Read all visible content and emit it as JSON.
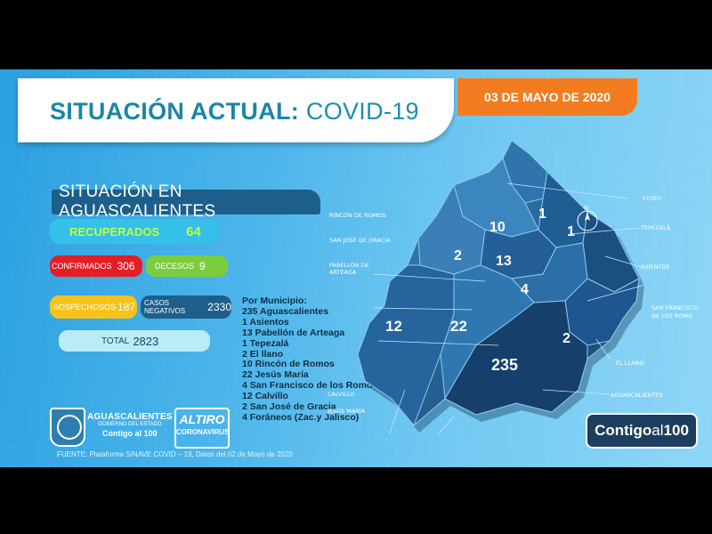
{
  "header": {
    "title_bold": "SITUACIÓN ACTUAL:",
    "title_rest": "COVID-19",
    "date": "03 DE MAYO DE 2020"
  },
  "section_title": "SITUACIÓN EN AGUASCALIENTES",
  "stats": {
    "recuperados": {
      "label": "RECUPERADOS",
      "value": "64"
    },
    "confirmados": {
      "label": "CONFIRMADOS",
      "value": "306"
    },
    "decesos": {
      "label": "DECESOS",
      "value": "9"
    },
    "sospechosos": {
      "label": "SOSPECHOSOS",
      "value": "187"
    },
    "negativos": {
      "label": "CASOS NEGATIVOS",
      "value": "2330"
    },
    "total": {
      "label": "TOTAL",
      "value": "2823"
    }
  },
  "municipios": {
    "heading": "Por Municipio:",
    "items": [
      "235 Aguascalientes",
      "1  Asientos",
      "13 Pabellón de Arteaga",
      "1   Tepezalá",
      "2   El llano",
      "10 Rincón de Romos",
      "22 Jesús María",
      "4 San Francisco de los Romo",
      "12    Calvillo",
      "2 San José de Gracia",
      "4 Foráneos (Zac.y Jalisco)"
    ]
  },
  "map": {
    "numbers": {
      "cosio": "1",
      "tepezala": "1",
      "rincon": "10",
      "sanjose": "2",
      "pabellon": "13",
      "sanfrancisco": "4",
      "calvillo": "12",
      "jesusmaria": "22",
      "elllano": "2",
      "aguascalientes": "235"
    },
    "labels": {
      "cosio": "COSÍO",
      "tepezala": "TEPEZALÁ",
      "asientos": "ASIENTOS",
      "rincon": "RINCÓN DE ROMOS",
      "sanjose": "SAN JOSÉ DE GRACIA",
      "pabellon1": "PABELLÓN DE",
      "pabellon2": "ARTEAGA",
      "sanfrancisco1": "SAN FRANCISCO",
      "sanfrancisco2": "DE LOS ROMO",
      "elllano": "EL LLANO",
      "aguascalientes": "AGUASCALIENTES",
      "calvillo": "CALVILLO",
      "jesusmaria": "JESÚS MARÍA",
      "compass": "N"
    }
  },
  "logos": {
    "gov_line1": "AGUASCALIENTES",
    "gov_line2": "GOBIERNO DEL ESTADO",
    "gov_line3": "Contigo al 100",
    "altiro_line1": "ALTIRO",
    "altiro_line2": "CORONAVIRUS",
    "contigo_a": "Contigo",
    "contigo_b": "al",
    "contigo_c": "100"
  },
  "footer": "FUENTE: Plataforma SINAVE COVID – 19, Datos del 02 de Mayo de 2020",
  "colors": {
    "orange": "#f27c1f",
    "teal": "#19a79b",
    "red": "#e31e24",
    "green": "#7ccd3c",
    "yellow": "#f7c21a",
    "navy": "#1d5f8a"
  }
}
